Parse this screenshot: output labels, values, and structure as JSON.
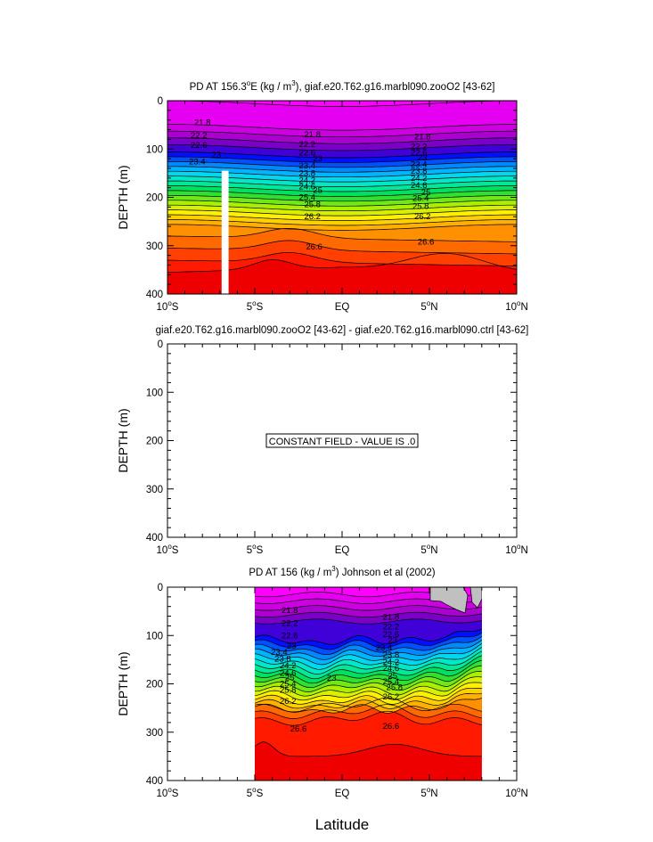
{
  "chart_data": [
    {
      "type": "contour",
      "title": "PD AT 156.3°E (kg / m³), giaf.e20.T62.g16.marbl090.zooO2 [43-62]",
      "title_parts": {
        "pre": "PD AT 156.3",
        "deg": "o",
        "mid": "E (kg / m",
        "exp": "3",
        "post": "), giaf.e20.T62.g16.marbl090.zooO2 [43-62]"
      },
      "xlabel": "",
      "ylabel": "DEPTH (m)",
      "xlim": [
        -10,
        10
      ],
      "ylim": [
        400,
        0
      ],
      "xticks": [
        "10°S",
        "5°S",
        "EQ",
        "5°N",
        "10°N"
      ],
      "yticks": [
        "0",
        "100",
        "200",
        "300",
        "400"
      ],
      "missing_band": {
        "lon_from": -6.9,
        "lon_to": -6.5,
        "depth_from": 145,
        "depth_to": 400
      },
      "contour_labels": [
        {
          "text": "21.8",
          "x": -8.0,
          "d": 45
        },
        {
          "text": "22.2",
          "x": -8.2,
          "d": 72
        },
        {
          "text": "22.6",
          "x": -8.2,
          "d": 92
        },
        {
          "text": "23",
          "x": -7.2,
          "d": 112
        },
        {
          "text": "23.4",
          "x": -8.3,
          "d": 126
        },
        {
          "text": "21.8",
          "x": -1.7,
          "d": 70
        },
        {
          "text": "22.2",
          "x": -2.0,
          "d": 90
        },
        {
          "text": "22.6",
          "x": -2.0,
          "d": 108
        },
        {
          "text": "23",
          "x": -1.4,
          "d": 120
        },
        {
          "text": "23.4",
          "x": -2.0,
          "d": 135
        },
        {
          "text": "23.8",
          "x": -2.0,
          "d": 150
        },
        {
          "text": "24.2",
          "x": -2.0,
          "d": 165
        },
        {
          "text": "24.6",
          "x": -2.0,
          "d": 178
        },
        {
          "text": "25",
          "x": -1.4,
          "d": 185
        },
        {
          "text": "25.4",
          "x": -2.0,
          "d": 200
        },
        {
          "text": "25.8",
          "x": -1.7,
          "d": 215
        },
        {
          "text": "26.2",
          "x": -1.7,
          "d": 240
        },
        {
          "text": "26.6",
          "x": -1.6,
          "d": 302
        },
        {
          "text": "21.8",
          "x": 4.6,
          "d": 75
        },
        {
          "text": "22.2",
          "x": 4.4,
          "d": 95
        },
        {
          "text": "22.6",
          "x": 4.4,
          "d": 108
        },
        {
          "text": "23",
          "x": 4.6,
          "d": 118
        },
        {
          "text": "23.4",
          "x": 4.4,
          "d": 132
        },
        {
          "text": "23.8",
          "x": 4.4,
          "d": 146
        },
        {
          "text": "24.2",
          "x": 4.4,
          "d": 160
        },
        {
          "text": "24.6",
          "x": 4.4,
          "d": 175
        },
        {
          "text": "25",
          "x": 4.8,
          "d": 190
        },
        {
          "text": "25.4",
          "x": 4.5,
          "d": 202
        },
        {
          "text": "25.8",
          "x": 4.5,
          "d": 218
        },
        {
          "text": "26.2",
          "x": 4.6,
          "d": 240
        },
        {
          "text": "26.6",
          "x": 4.8,
          "d": 292
        }
      ]
    },
    {
      "type": "contour",
      "title": "giaf.e20.T62.g16.marbl090.zooO2 [43-62] - giaf.e20.T62.g16.marbl090.ctrl [43-62]",
      "xlabel": "",
      "ylabel": "DEPTH (m)",
      "xlim": [
        -10,
        10
      ],
      "ylim": [
        400,
        0
      ],
      "xticks": [
        "10°S",
        "5°S",
        "EQ",
        "5°N",
        "10°N"
      ],
      "yticks": [
        "0",
        "100",
        "200",
        "300",
        "400"
      ],
      "annotation": "CONSTANT FIELD - VALUE IS .0"
    },
    {
      "type": "contour",
      "title": "PD AT 156 (kg / m³) Johnson et al (2002)",
      "title_parts": {
        "pre": "PD AT 156 (kg / m",
        "exp": "3",
        "post": ") Johnson et al (2002)"
      },
      "xlabel": "Latitude",
      "ylabel": "DEPTH (m)",
      "xlim": [
        -10,
        10
      ],
      "ylim": [
        400,
        0
      ],
      "xticks": [
        "10°S",
        "5°S",
        "EQ",
        "5°N",
        "10°N"
      ],
      "yticks": [
        "0",
        "100",
        "200",
        "300",
        "400"
      ],
      "data_extent": {
        "lon_from": -5,
        "lon_to": 8
      },
      "contour_labels": [
        {
          "text": "21.8",
          "x": -3.0,
          "d": 48
        },
        {
          "text": "22.2",
          "x": -3.0,
          "d": 75
        },
        {
          "text": "22.6",
          "x": -3.0,
          "d": 100
        },
        {
          "text": "23",
          "x": -2.9,
          "d": 122
        },
        {
          "text": "23.4",
          "x": -3.6,
          "d": 135
        },
        {
          "text": "23.8",
          "x": -3.4,
          "d": 148
        },
        {
          "text": "24.2",
          "x": -3.1,
          "d": 162
        },
        {
          "text": "24.6",
          "x": -3.1,
          "d": 178
        },
        {
          "text": "25",
          "x": -3.0,
          "d": 187
        },
        {
          "text": "25.4",
          "x": -3.1,
          "d": 200
        },
        {
          "text": "25.8",
          "x": -3.1,
          "d": 213
        },
        {
          "text": "26.2",
          "x": -3.1,
          "d": 236
        },
        {
          "text": "26.6",
          "x": -2.5,
          "d": 293
        },
        {
          "text": "23",
          "x": -0.6,
          "d": 188
        },
        {
          "text": "21.8",
          "x": 2.8,
          "d": 62
        },
        {
          "text": "22.2",
          "x": 2.8,
          "d": 82
        },
        {
          "text": "22.6",
          "x": 2.8,
          "d": 98
        },
        {
          "text": "23",
          "x": 2.9,
          "d": 110
        },
        {
          "text": "23.4",
          "x": 2.4,
          "d": 125
        },
        {
          "text": "23.8",
          "x": 2.8,
          "d": 140
        },
        {
          "text": "24.2",
          "x": 2.8,
          "d": 155
        },
        {
          "text": "24.6",
          "x": 2.8,
          "d": 168
        },
        {
          "text": "25",
          "x": 2.9,
          "d": 183
        },
        {
          "text": "25.4",
          "x": 2.8,
          "d": 195
        },
        {
          "text": "25.8",
          "x": 3.0,
          "d": 207
        },
        {
          "text": "26.2",
          "x": 2.8,
          "d": 227
        },
        {
          "text": "26.6",
          "x": 2.8,
          "d": 288
        }
      ]
    }
  ],
  "colors": {
    "levels": [
      "#ff00ff",
      "#e600f2",
      "#cc00e0",
      "#aa00d0",
      "#7a00c8",
      "#4000d8",
      "#0010ff",
      "#0050ff",
      "#0088ff",
      "#00b4ff",
      "#00d8f0",
      "#00e8c8",
      "#00e898",
      "#00e060",
      "#30e030",
      "#70e818",
      "#a8f000",
      "#d8f000",
      "#fff000",
      "#ffd000",
      "#ffb000",
      "#ff9000",
      "#ff6a00",
      "#ff4000",
      "#ff1a00",
      "#ee0000",
      "#d00000"
    ],
    "land": "#c0c0c0",
    "line": "#000000"
  }
}
